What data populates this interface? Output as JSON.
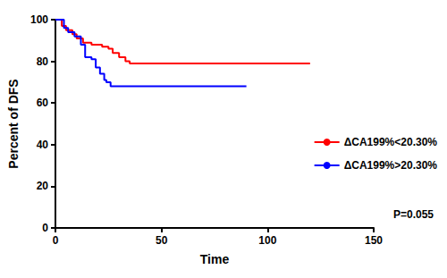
{
  "chart_data": {
    "type": "line",
    "x_label": "Time",
    "y_label": "Percent of DFS",
    "annotation": "P=0.055",
    "xlim": [
      0,
      150
    ],
    "xticks": [
      0,
      50,
      100,
      150
    ],
    "ylim": [
      0,
      100
    ],
    "yticks": [
      0,
      20,
      40,
      60,
      80,
      100
    ],
    "grid": false,
    "legend": "right",
    "line_style": "step",
    "series": [
      {
        "name": "ΔCA199%<20.30%",
        "color": "#ff0000",
        "x": [
          0,
          3,
          5,
          8,
          10,
          13,
          17,
          22,
          25,
          27,
          30,
          33,
          35,
          120
        ],
        "values": [
          100,
          97,
          95,
          93,
          91,
          89,
          88,
          87,
          86,
          84,
          82,
          80,
          79,
          79
        ]
      },
      {
        "name": "ΔCA199%>20.30%",
        "color": "#0000ff",
        "x": [
          0,
          4,
          6,
          9,
          12,
          14,
          17,
          19,
          21,
          23,
          24,
          26,
          90
        ],
        "values": [
          100,
          96,
          94,
          92,
          88,
          82,
          81,
          77,
          74,
          71,
          70,
          68,
          68
        ]
      }
    ]
  }
}
